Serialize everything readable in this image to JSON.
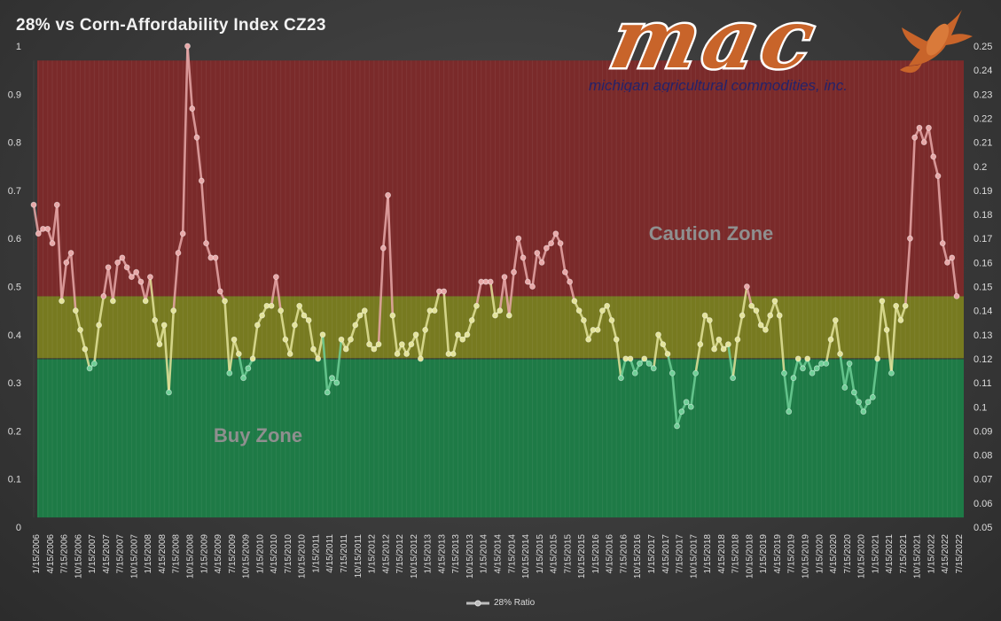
{
  "title": "28% vs Corn-Affordability Index CZ23",
  "logo": {
    "wordmark": "mac",
    "tagline": "michigan agricultural commodities, inc."
  },
  "zones": {
    "caution_label": "Caution Zone",
    "buy_label": "Buy Zone",
    "caution_color": "#7a2a2a",
    "neutral_color": "#777a20",
    "buy_color": "#1e7a46",
    "buy_top": 0.35,
    "neutral_top": 0.48,
    "caution_top": 0.97
  },
  "colors": {
    "line_caution": "#e8a8a8",
    "line_neutral": "#e4e49a",
    "line_buy": "#6fcf97"
  },
  "chart_data": {
    "type": "line",
    "title": "28% vs Corn-Affordability Index CZ23",
    "ylim": [
      0,
      1
    ],
    "y2lim": [
      0.05,
      0.25
    ],
    "y_ticks": [
      "0",
      "0.1",
      "0.2",
      "0.3",
      "0.4",
      "0.5",
      "0.6",
      "0.7",
      "0.8",
      "0.9",
      "1"
    ],
    "y2_ticks": [
      "0.05",
      "0.06",
      "0.07",
      "0.08",
      "0.09",
      "0.1",
      "0.11",
      "0.12",
      "0.13",
      "0.14",
      "0.15",
      "0.16",
      "0.17",
      "0.18",
      "0.19",
      "0.2",
      "0.21",
      "0.22",
      "0.23",
      "0.24",
      "0.25"
    ],
    "x_tick_labels": [
      "1/15/2006",
      "4/15/2006",
      "7/15/2006",
      "10/15/2006",
      "1/15/2007",
      "4/15/2007",
      "7/15/2007",
      "10/15/2007",
      "1/15/2008",
      "4/15/2008",
      "7/15/2008",
      "10/15/2008",
      "1/15/2009",
      "4/15/2009",
      "7/15/2009",
      "10/15/2009",
      "1/15/2010",
      "4/15/2010",
      "7/15/2010",
      "10/15/2010",
      "1/15/2011",
      "4/15/2011",
      "7/15/2011",
      "10/15/2011",
      "1/15/2012",
      "4/15/2012",
      "7/15/2012",
      "10/15/2012",
      "1/15/2013",
      "4/15/2013",
      "7/15/2013",
      "10/15/2013",
      "1/15/2014",
      "4/15/2014",
      "7/15/2014",
      "10/15/2014",
      "1/15/2015",
      "4/15/2015",
      "7/15/2015",
      "10/15/2015",
      "1/15/2016",
      "4/15/2016",
      "7/15/2016",
      "10/15/2016",
      "1/15/2017",
      "4/15/2017",
      "7/15/2017",
      "10/15/2017",
      "1/15/2018",
      "4/15/2018",
      "7/15/2018",
      "10/15/2018",
      "1/15/2019",
      "4/15/2019",
      "7/15/2019",
      "10/15/2019",
      "1/15/2020",
      "4/15/2020",
      "7/15/2020",
      "10/15/2020",
      "1/15/2021",
      "4/15/2021",
      "7/15/2021",
      "10/15/2021",
      "1/15/2022",
      "4/15/2022",
      "7/15/2022"
    ],
    "series": [
      {
        "name": "28% Ratio",
        "values": [
          0.67,
          0.61,
          0.62,
          0.62,
          0.59,
          0.67,
          0.47,
          0.55,
          0.57,
          0.45,
          0.41,
          0.37,
          0.33,
          0.34,
          0.42,
          0.48,
          0.54,
          0.47,
          0.55,
          0.56,
          0.54,
          0.52,
          0.53,
          0.51,
          0.47,
          0.52,
          0.43,
          0.38,
          0.42,
          0.28,
          0.45,
          0.57,
          0.61,
          1.0,
          0.87,
          0.81,
          0.72,
          0.59,
          0.56,
          0.56,
          0.49,
          0.47,
          0.32,
          0.39,
          0.36,
          0.31,
          0.33,
          0.35,
          0.42,
          0.44,
          0.46,
          0.46,
          0.52,
          0.45,
          0.39,
          0.36,
          0.42,
          0.46,
          0.44,
          0.43,
          0.37,
          0.35,
          0.4,
          0.28,
          0.31,
          0.3,
          0.39,
          0.37,
          0.39,
          0.42,
          0.44,
          0.45,
          0.38,
          0.37,
          0.38,
          0.58,
          0.69,
          0.44,
          0.36,
          0.38,
          0.36,
          0.38,
          0.4,
          0.35,
          0.41,
          0.45,
          0.45,
          0.49,
          0.49,
          0.36,
          0.36,
          0.4,
          0.39,
          0.4,
          0.43,
          0.46,
          0.51,
          0.51,
          0.51,
          0.44,
          0.45,
          0.52,
          0.44,
          0.53,
          0.6,
          0.56,
          0.51,
          0.5,
          0.57,
          0.55,
          0.58,
          0.59,
          0.61,
          0.59,
          0.53,
          0.51,
          0.47,
          0.45,
          0.43,
          0.39,
          0.41,
          0.41,
          0.45,
          0.46,
          0.43,
          0.39,
          0.31,
          0.35,
          0.35,
          0.32,
          0.34,
          0.35,
          0.34,
          0.33,
          0.4,
          0.38,
          0.36,
          0.32,
          0.21,
          0.24,
          0.26,
          0.25,
          0.32,
          0.38,
          0.44,
          0.43,
          0.37,
          0.39,
          0.37,
          0.38,
          0.31,
          0.39,
          0.44,
          0.5,
          0.46,
          0.45,
          0.42,
          0.41,
          0.44,
          0.47,
          0.44,
          0.32,
          0.24,
          0.31,
          0.35,
          0.33,
          0.35,
          0.32,
          0.33,
          0.34,
          0.34,
          0.39,
          0.43,
          0.36,
          0.29,
          0.34,
          0.28,
          0.26,
          0.24,
          0.26,
          0.27,
          0.35,
          0.47,
          0.41,
          0.32,
          0.46,
          0.43,
          0.46,
          0.6,
          0.81,
          0.83,
          0.8,
          0.83,
          0.77,
          0.73,
          0.59,
          0.55,
          0.56,
          0.48
        ]
      }
    ]
  }
}
